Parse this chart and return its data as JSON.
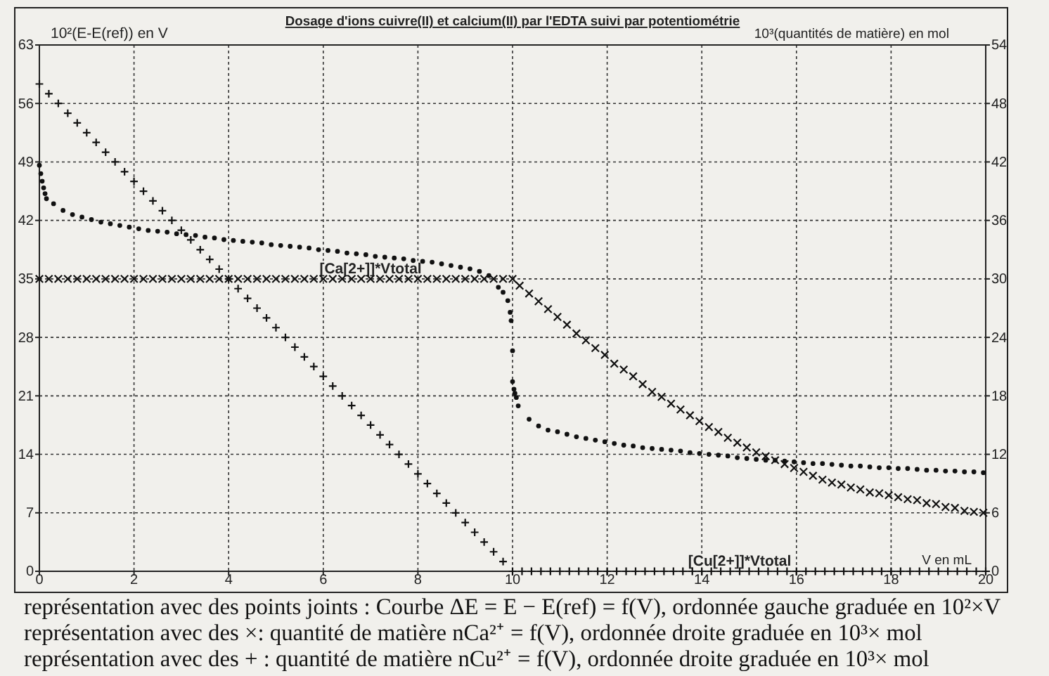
{
  "chart_data": {
    "type": "scatter",
    "title": "Dosage d'ions cuivre(II) et calcium(II) par l'EDTA suivi par potentiométrie",
    "xlabel": "V en mL",
    "ylabel": "10²(E-E(ref)) en V",
    "y2label": "10³(quantités de matière) en mol",
    "xlim": [
      0,
      20
    ],
    "xticks": [
      0,
      2,
      4,
      6,
      8,
      10,
      12,
      14,
      16,
      18,
      20
    ],
    "ylim": [
      0,
      63
    ],
    "yticks": [
      0,
      7,
      14,
      21,
      28,
      35,
      42,
      49,
      56,
      63
    ],
    "y2lim": [
      0,
      54
    ],
    "y2ticks": [
      0,
      6,
      12,
      18,
      24,
      30,
      36,
      42,
      48,
      54
    ],
    "grid": true,
    "series": [
      {
        "color": "#111111",
        "marker": "circle",
        "x": [
          0,
          0.03,
          0.06,
          0.09,
          0.12,
          0.15,
          0.3,
          0.5,
          0.7,
          0.9,
          1.1,
          1.3,
          1.5,
          1.7,
          1.9,
          2.1,
          2.3,
          2.5,
          2.7,
          2.9,
          3.1,
          3.3,
          3.5,
          3.7,
          3.9,
          4.1,
          4.3,
          4.5,
          4.7,
          4.9,
          5.1,
          5.3,
          5.5,
          5.7,
          5.9,
          6.1,
          6.3,
          6.5,
          6.7,
          6.9,
          7.1,
          7.3,
          7.5,
          7.7,
          7.9,
          8.1,
          8.3,
          8.5,
          8.7,
          8.9,
          9.1,
          9.3,
          9.5,
          9.7,
          9.8,
          9.9,
          9.95,
          9.97,
          10,
          10,
          10.03,
          10.05,
          10.08,
          10.12,
          10.35,
          10.55,
          10.75,
          10.95,
          11.15,
          11.35,
          11.55,
          11.75,
          11.95,
          12.15,
          12.35,
          12.55,
          12.75,
          12.95,
          13.15,
          13.35,
          13.55,
          13.75,
          13.95,
          14.15,
          14.35,
          14.55,
          14.75,
          14.95,
          15.15,
          15.35,
          15.55,
          15.75,
          15.95,
          16.15,
          16.35,
          16.55,
          16.75,
          16.95,
          17.15,
          17.35,
          17.55,
          17.75,
          17.95,
          18.15,
          18.35,
          18.55,
          18.75,
          18.95,
          19.15,
          19.35,
          19.55,
          19.75,
          19.95
        ],
        "values": [
          48.6,
          47.6,
          46.7,
          45.9,
          45.2,
          44.6,
          44.0,
          43.2,
          42.7,
          42.4,
          42.1,
          41.8,
          41.6,
          41.4,
          41.2,
          41.0,
          40.8,
          40.7,
          40.6,
          40.4,
          40.3,
          40.2,
          40.0,
          39.9,
          39.7,
          39.6,
          39.5,
          39.4,
          39.3,
          39.1,
          39.0,
          38.9,
          38.8,
          38.7,
          38.5,
          38.4,
          38.3,
          38.1,
          38.0,
          37.9,
          37.7,
          37.6,
          37.5,
          37.4,
          37.2,
          37.1,
          37.0,
          36.8,
          36.6,
          36.4,
          36.2,
          35.9,
          35.4,
          34.0,
          33.4,
          32.4,
          31.0,
          30.0,
          26.4,
          22.7,
          21.8,
          21.3,
          20.8,
          19.8,
          18.2,
          17.4,
          16.9,
          16.7,
          16.4,
          16.1,
          15.9,
          15.7,
          15.5,
          15.3,
          15.1,
          15.0,
          14.8,
          14.7,
          14.6,
          14.5,
          14.4,
          14.2,
          14.1,
          14.0,
          13.9,
          13.8,
          13.6,
          13.5,
          13.4,
          13.3,
          13.3,
          13.2,
          13.1,
          13.0,
          12.9,
          12.9,
          12.8,
          12.7,
          12.6,
          12.6,
          12.5,
          12.4,
          12.4,
          12.3,
          12.3,
          12.2,
          12.1,
          12.1,
          12.0,
          12.0,
          11.9,
          11.9,
          11.8
        ]
      },
      {
        "color": "#111111",
        "marker": "cross",
        "axis": "y2",
        "x": [
          0,
          0.2,
          0.4,
          0.6,
          0.8,
          1,
          1.2,
          1.4,
          1.6,
          1.8,
          2,
          2.2,
          2.4,
          2.6,
          2.8,
          3,
          3.2,
          3.4,
          3.6,
          3.8,
          4,
          4.2,
          4.4,
          4.6,
          4.8,
          5,
          5.2,
          5.4,
          5.6,
          5.8,
          6,
          6.2,
          6.4,
          6.6,
          6.8,
          7,
          7.2,
          7.4,
          7.6,
          7.8,
          8,
          8.2,
          8.4,
          8.6,
          8.8,
          9,
          9.2,
          9.4,
          9.6,
          9.8,
          10,
          10.15,
          10.35,
          10.55,
          10.75,
          10.95,
          11.15,
          11.35,
          11.55,
          11.75,
          11.95,
          12.15,
          12.35,
          12.55,
          12.75,
          12.95,
          13.15,
          13.35,
          13.55,
          13.75,
          13.95,
          14.15,
          14.35,
          14.55,
          14.75,
          14.95,
          15.15,
          15.35,
          15.55,
          15.75,
          15.95,
          16.15,
          16.35,
          16.55,
          16.75,
          16.95,
          17.15,
          17.35,
          17.55,
          17.75,
          17.95,
          18.15,
          18.35,
          18.55,
          18.75,
          18.95,
          19.15,
          19.35,
          19.55,
          19.75,
          19.95
        ],
        "values": [
          30,
          30,
          30,
          30,
          30,
          30,
          30,
          30,
          30,
          30,
          30,
          30,
          30,
          30,
          30,
          30,
          30,
          30,
          30,
          30,
          30,
          30,
          30,
          30,
          30,
          30,
          30,
          30,
          30,
          30,
          30,
          30,
          30,
          30,
          30,
          30,
          30,
          30,
          30,
          30,
          30,
          30,
          30,
          30,
          30,
          30,
          30,
          30,
          30,
          30,
          30,
          29.3,
          28.5,
          27.7,
          26.9,
          26.1,
          25.3,
          24.4,
          23.7,
          22.9,
          22.2,
          21.3,
          20.7,
          20.0,
          19.2,
          18.4,
          17.9,
          17.2,
          16.6,
          16.0,
          15.4,
          14.8,
          14.3,
          13.7,
          13.2,
          12.7,
          12.2,
          11.8,
          11.4,
          11.0,
          10.6,
          10.2,
          9.8,
          9.4,
          9.1,
          8.9,
          8.6,
          8.4,
          8.1,
          8.0,
          7.8,
          7.6,
          7.4,
          7.3,
          7.0,
          6.9,
          6.6,
          6.5,
          6.2,
          6.1,
          6.0
        ]
      },
      {
        "color": "#111111",
        "marker": "plus",
        "axis": "y2",
        "x": [
          0,
          0.2,
          0.4,
          0.6,
          0.8,
          1,
          1.2,
          1.4,
          1.6,
          1.8,
          2,
          2.2,
          2.4,
          2.6,
          2.8,
          3,
          3.2,
          3.4,
          3.6,
          3.8,
          4,
          4.2,
          4.4,
          4.6,
          4.8,
          5,
          5.2,
          5.4,
          5.6,
          5.8,
          6,
          6.2,
          6.4,
          6.6,
          6.8,
          7,
          7.2,
          7.4,
          7.6,
          7.8,
          8,
          8.2,
          8.4,
          8.6,
          8.8,
          9,
          9.2,
          9.4,
          9.6,
          9.8,
          10,
          10.2,
          10.4,
          10.6,
          10.8,
          11,
          11.2,
          11.4,
          11.6,
          11.8,
          12,
          12.2,
          12.4,
          12.6,
          12.8,
          13,
          13.2,
          13.4,
          13.6,
          13.8,
          14,
          14.2,
          14.4,
          14.6,
          14.8,
          15,
          15.2,
          15.4,
          15.6,
          15.8,
          16,
          16.2,
          16.4,
          16.6,
          16.8,
          17,
          17.2,
          17.4,
          17.6,
          17.8,
          18,
          18.2,
          18.4,
          18.6,
          18.8,
          19,
          19.2,
          19.4,
          19.6,
          19.8,
          20
        ],
        "values": [
          50,
          49,
          48,
          47,
          46,
          45,
          44,
          43,
          42,
          41,
          40,
          39,
          38,
          37,
          36,
          35,
          34,
          33,
          32,
          31,
          30,
          29,
          28,
          27,
          26,
          25,
          24,
          23,
          22,
          21,
          20,
          19,
          18,
          17,
          16,
          15,
          14,
          13,
          12,
          11,
          10,
          9,
          8,
          7,
          6,
          5,
          4,
          3,
          2,
          1,
          0,
          0,
          0,
          0,
          0,
          0,
          0,
          0,
          0,
          0,
          0,
          0,
          0,
          0,
          0,
          0,
          0,
          0,
          0,
          0,
          0,
          0,
          0,
          0,
          0,
          0,
          0,
          0,
          0,
          0,
          0,
          0,
          0,
          0,
          0,
          0,
          0,
          0,
          0,
          0,
          0,
          0,
          0,
          0,
          0,
          0,
          0,
          0,
          0,
          0,
          0
        ]
      }
    ],
    "annotations": [
      {
        "text": "[Ca[2+]]*Vtotal",
        "x": 7,
        "y": 35
      },
      {
        "text": "[Cu[2+]]*Vtotal",
        "x": 14.8,
        "y": 0
      },
      "représentation avec des points joints : Courbe ΔE = E − E(ref) = f(V), ordonnée gauche graduée en 10²×V",
      "représentation avec des ×: quantité de matière nCa²⁺ = f(V), ordonnée droite graduée en 10³× mol",
      "représentation avec des + : quantité de matière nCu²⁺ = f(V), ordonnée droite graduée en 10³× mol"
    ]
  }
}
